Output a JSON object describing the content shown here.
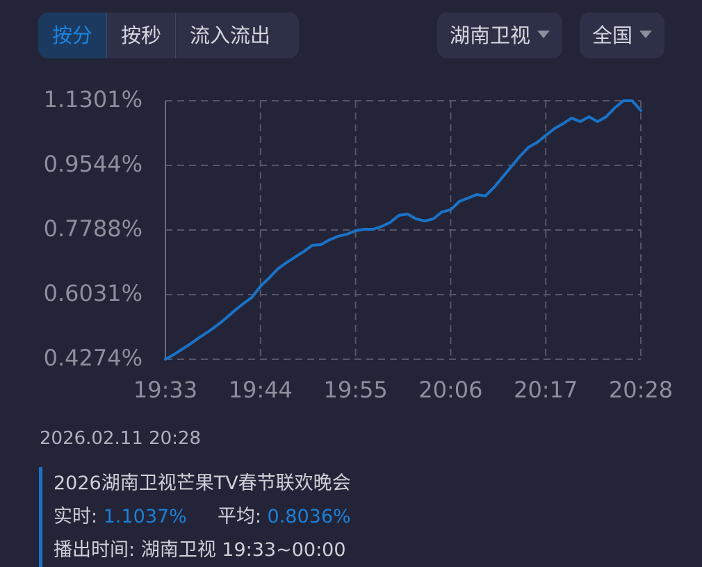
{
  "tabs": [
    "按分",
    "按秒",
    "流入流出"
  ],
  "dropdowns": [
    "湖南卫视",
    "全国"
  ],
  "chart_data": {
    "type": "line",
    "categories": [
      "19:33",
      null,
      null,
      null,
      null,
      null,
      null,
      null,
      null,
      null,
      null,
      "19:44",
      null,
      null,
      null,
      null,
      null,
      null,
      null,
      null,
      null,
      null,
      "19:55",
      null,
      null,
      null,
      null,
      null,
      null,
      null,
      null,
      null,
      null,
      "20:06",
      null,
      null,
      null,
      null,
      null,
      null,
      null,
      null,
      null,
      null,
      "20:17",
      null,
      null,
      null,
      null,
      null,
      null,
      null,
      null,
      null,
      null,
      "20:28"
    ],
    "series": [
      {
        "color": "#1a72c6",
        "values": [
          0.4274,
          0.4406,
          0.4557,
          0.4708,
          0.4878,
          0.503,
          0.52,
          0.5388,
          0.5596,
          0.5785,
          0.5955,
          0.6258,
          0.6484,
          0.673,
          0.69,
          0.7051,
          0.7202,
          0.7372,
          0.7391,
          0.7523,
          0.7618,
          0.7674,
          0.7768,
          0.7806,
          0.7806,
          0.7882,
          0.7995,
          0.8184,
          0.8222,
          0.809,
          0.8033,
          0.809,
          0.8279,
          0.8336,
          0.8562,
          0.8656,
          0.8751,
          0.8713,
          0.894,
          0.9223,
          0.9506,
          0.979,
          1.0036,
          1.0168,
          1.0357,
          1.0545,
          1.0678,
          1.0829,
          1.0734,
          1.0866,
          1.0734,
          1.0866,
          1.1112,
          1.1301,
          1.1301,
          1.1037
        ]
      }
    ],
    "ylim": [
      0.4274,
      1.1301
    ],
    "yticks": [
      {
        "value": 0.4274,
        "label": "0.4274%"
      },
      {
        "value": 0.6031,
        "label": "0.6031%"
      },
      {
        "value": 0.7788,
        "label": "0.7788%"
      },
      {
        "value": 0.9544,
        "label": "0.9544%"
      },
      {
        "value": 1.1301,
        "label": "1.1301%"
      }
    ],
    "grid": true
  },
  "info": {
    "datetime": "2026.02.11 20:28",
    "program": "2026湖南卫视芒果TV春节联欢晚会",
    "realtime_label": "实时:",
    "realtime_value": "1.1037%",
    "average_label": "平均:",
    "average_value": "0.8036%",
    "airtime_label": "播出时间:",
    "airtime_value": "湖南卫视 19:33~00:00"
  }
}
